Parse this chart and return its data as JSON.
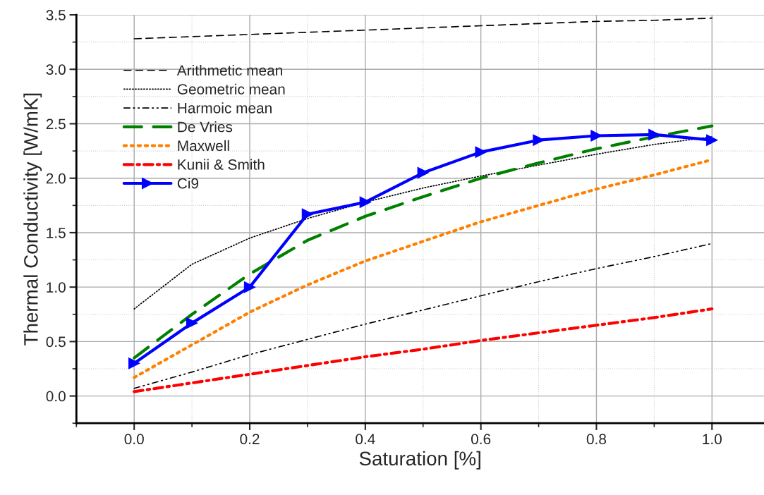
{
  "chart_data": {
    "type": "line",
    "xlabel": "Saturation [%]",
    "ylabel": "Thermal Conductivity [W/mK]",
    "x": [
      0.0,
      0.1,
      0.2,
      0.3,
      0.4,
      0.5,
      0.6,
      0.7,
      0.8,
      0.9,
      1.0
    ],
    "series": [
      {
        "name": "Arithmetic mean",
        "color": "#000000",
        "line_style": "dashed",
        "values": [
          3.28,
          3.3,
          3.32,
          3.34,
          3.36,
          3.38,
          3.4,
          3.42,
          3.44,
          3.45,
          3.47
        ]
      },
      {
        "name": "Geometric mean",
        "color": "#000000",
        "line_style": "dotted",
        "values": [
          0.8,
          1.21,
          1.45,
          1.63,
          1.78,
          1.91,
          2.02,
          2.12,
          2.22,
          2.31,
          2.38
        ]
      },
      {
        "name": "Harmoic mean",
        "color": "#000000",
        "line_style": "dashdotdot",
        "values": [
          0.07,
          0.22,
          0.38,
          0.52,
          0.66,
          0.79,
          0.92,
          1.05,
          1.17,
          1.28,
          1.4
        ]
      },
      {
        "name": "De Vries",
        "color": "#008000",
        "line_style": "dashed",
        "values": [
          0.35,
          0.75,
          1.12,
          1.43,
          1.65,
          1.83,
          2.0,
          2.14,
          2.27,
          2.38,
          2.48
        ]
      },
      {
        "name": "Maxwell",
        "color": "#ff8000",
        "line_style": "dotted",
        "values": [
          0.17,
          0.47,
          0.77,
          1.02,
          1.24,
          1.42,
          1.6,
          1.75,
          1.9,
          2.03,
          2.17
        ]
      },
      {
        "name": "Kunii & Smith",
        "color": "#ff0000",
        "line_style": "dashdot",
        "values": [
          0.04,
          0.12,
          0.2,
          0.28,
          0.36,
          0.43,
          0.51,
          0.58,
          0.65,
          0.72,
          0.8
        ]
      },
      {
        "name": "Ci9",
        "color": "#0000ff",
        "line_style": "solid",
        "marker": "triangle",
        "values": [
          0.3,
          0.67,
          1.0,
          1.67,
          1.78,
          2.05,
          2.24,
          2.35,
          2.39,
          2.4,
          2.35
        ]
      }
    ],
    "xlim": [
      -0.1,
      1.09
    ],
    "xticks": [
      {
        "value": 0.0,
        "label": "0.0"
      },
      0.2,
      0.4,
      0.6,
      0.8,
      {
        "value": 1.0,
        "label": "1.0"
      }
    ],
    "ylim": [
      -0.25,
      3.5
    ],
    "yticks": [
      {
        "value": 0.0,
        "label": "0.0"
      },
      0.5,
      {
        "value": 1.0,
        "label": "1.0"
      },
      1.5,
      {
        "value": 2.0,
        "label": "2.0"
      },
      2.5,
      {
        "value": 3.0,
        "label": "3.0"
      },
      3.5
    ],
    "grid": true,
    "legend": "top left"
  }
}
